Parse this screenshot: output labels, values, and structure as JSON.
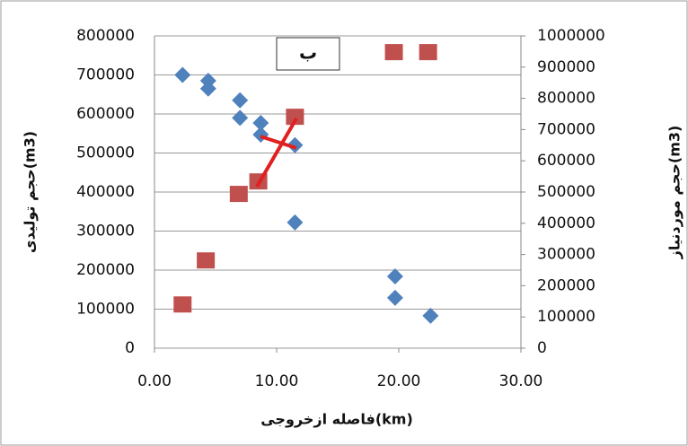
{
  "chart_data": {
    "type": "scatter",
    "annotation": "ب",
    "xlabel": "فاصله ازخروجی(km)",
    "ylabel": "حجم تولیدی(m3)",
    "y2label": "حجم موردنیاز(m3)",
    "xlim": [
      0,
      30
    ],
    "xticks": [
      {
        "value": 0,
        "label": "0.00"
      },
      {
        "value": 10,
        "label": "10.00"
      },
      {
        "value": 20,
        "label": "20.00"
      },
      {
        "value": 30,
        "label": "30.00"
      }
    ],
    "ylim": [
      0,
      800000
    ],
    "yticks": [
      0,
      100000,
      200000,
      300000,
      400000,
      500000,
      600000,
      700000,
      800000
    ],
    "y2lim": [
      0,
      1000000
    ],
    "y2ticks": [
      0,
      100000,
      200000,
      300000,
      400000,
      500000,
      600000,
      700000,
      800000,
      900000,
      1000000
    ],
    "grid": true,
    "series": [
      {
        "color": "#4f81bd",
        "marker": "diamond",
        "x": [
          2.3,
          4.4,
          4.4,
          7.0,
          7.0,
          8.7,
          8.7,
          11.5,
          11.5,
          19.7,
          19.7,
          22.6
        ],
        "values": [
          700000,
          685000,
          665000,
          635000,
          590000,
          577000,
          547000,
          520000,
          322000,
          184000,
          129000,
          83000
        ]
      },
      {
        "color": "#c0504d",
        "marker": "square",
        "axis": "y2",
        "x": [
          2.3,
          4.2,
          6.9,
          8.5,
          11.5,
          19.6,
          22.4
        ],
        "values": [
          140000,
          281000,
          494000,
          534000,
          741000,
          948000,
          948000
        ]
      }
    ]
  }
}
